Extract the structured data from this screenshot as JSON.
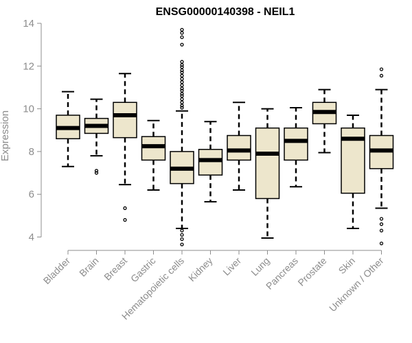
{
  "chart_data": {
    "type": "boxplot",
    "title": "ENSG00000140398 - NEIL1",
    "xlabel": "",
    "ylabel": "Expression",
    "ylim": [
      3.6,
      14.0
    ],
    "yticks": [
      4,
      6,
      8,
      10,
      12,
      14
    ],
    "box_color": "#ede6cc",
    "grid": false,
    "categories": [
      "Bladder",
      "Brain",
      "Breast",
      "Gastric",
      "Hematopoietic cells",
      "Kidney",
      "Liver",
      "Lung",
      "Pancreas",
      "Prostate",
      "Skin",
      "Unknown / Other"
    ],
    "boxes": [
      {
        "min": 7.3,
        "q1": 8.6,
        "median": 9.1,
        "q3": 9.7,
        "max": 10.8,
        "outliers": []
      },
      {
        "min": 7.8,
        "q1": 8.85,
        "median": 9.2,
        "q3": 9.55,
        "max": 10.45,
        "outliers": [
          7.0,
          7.1
        ]
      },
      {
        "min": 6.45,
        "q1": 8.65,
        "median": 9.7,
        "q3": 10.3,
        "max": 11.65,
        "outliers": [
          5.35,
          4.8
        ]
      },
      {
        "min": 6.2,
        "q1": 7.6,
        "median": 8.25,
        "q3": 8.7,
        "max": 9.45,
        "outliers": []
      },
      {
        "min": 4.4,
        "q1": 6.5,
        "median": 7.2,
        "q3": 8.0,
        "max": 9.9,
        "outliers": [
          13.7,
          13.55,
          13.35,
          13.0,
          12.2,
          12.05,
          11.95,
          11.8,
          11.7,
          11.55,
          11.4,
          11.25,
          11.1,
          10.95,
          10.85,
          10.7,
          10.6,
          10.45,
          10.3,
          10.15,
          10.05,
          4.3,
          4.1,
          3.9,
          3.65
        ]
      },
      {
        "min": 5.65,
        "q1": 6.9,
        "median": 7.6,
        "q3": 8.1,
        "max": 9.4,
        "outliers": []
      },
      {
        "min": 6.2,
        "q1": 7.6,
        "median": 8.05,
        "q3": 8.75,
        "max": 10.3,
        "outliers": []
      },
      {
        "min": 3.95,
        "q1": 5.8,
        "median": 7.9,
        "q3": 9.1,
        "max": 10.0,
        "outliers": []
      },
      {
        "min": 6.35,
        "q1": 7.6,
        "median": 8.5,
        "q3": 9.1,
        "max": 10.05,
        "outliers": []
      },
      {
        "min": 7.95,
        "q1": 9.3,
        "median": 9.85,
        "q3": 10.3,
        "max": 10.9,
        "outliers": []
      },
      {
        "min": 4.4,
        "q1": 6.05,
        "median": 8.6,
        "q3": 9.1,
        "max": 9.7,
        "outliers": []
      },
      {
        "min": 5.35,
        "q1": 7.2,
        "median": 8.05,
        "q3": 8.75,
        "max": 10.9,
        "outliers": [
          11.85,
          11.55,
          4.85,
          4.6,
          4.3,
          3.7
        ]
      }
    ]
  }
}
